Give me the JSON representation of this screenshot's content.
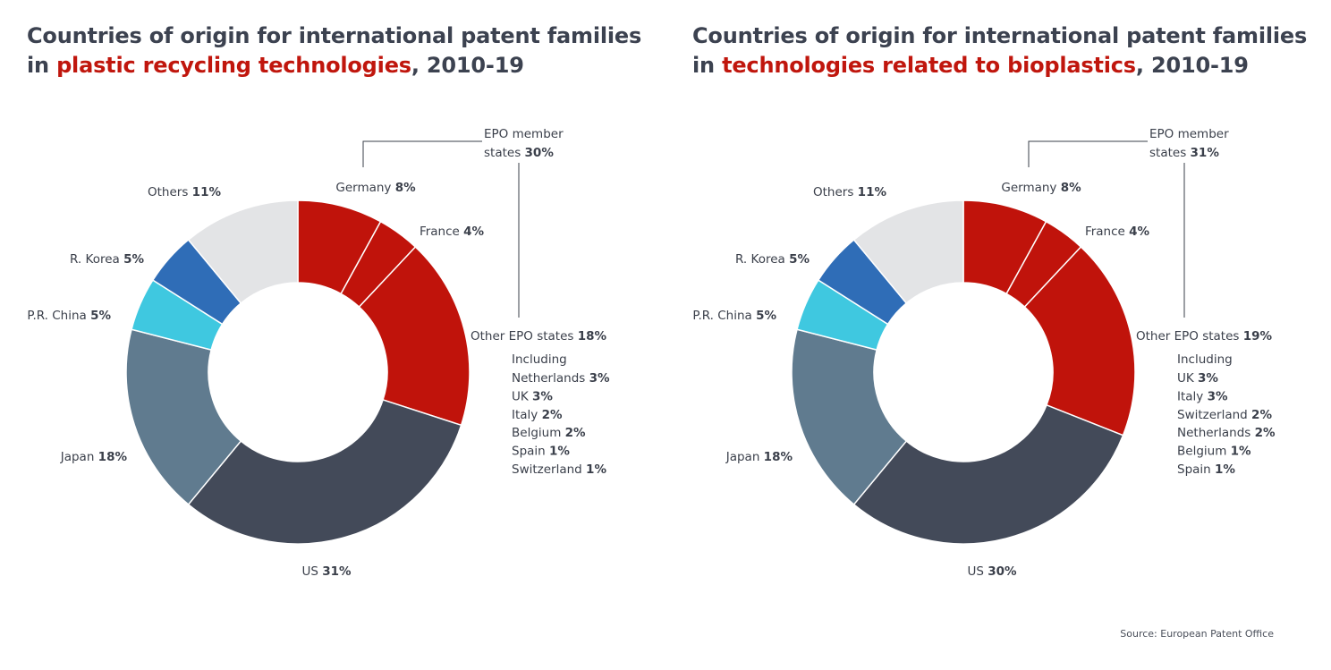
{
  "source": "Source: European Patent Office",
  "colors": {
    "epo_red": "#c0130b",
    "us": "#434a59",
    "japan": "#607b8f",
    "china": "#3fc8e0",
    "korea": "#2f6db7",
    "others": "#e3e4e6"
  },
  "chart_data": [
    {
      "type": "pie",
      "donut": true,
      "title": {
        "line1": "Countries of origin for international patent families",
        "prefix": "in ",
        "highlight": "plastic recycling technologies",
        "suffix": ", 2010-19"
      },
      "group": {
        "label": "EPO member",
        "label2": "states ",
        "value": "30%"
      },
      "slices": [
        {
          "key": "germany",
          "name": "Germany",
          "value": 8,
          "display": "8%",
          "color_key": "epo_red"
        },
        {
          "key": "france",
          "name": "France",
          "value": 4,
          "display": "4%",
          "color_key": "epo_red"
        },
        {
          "key": "other_epo",
          "name": "Other EPO states",
          "value": 18,
          "display": "18%",
          "color_key": "epo_red"
        },
        {
          "key": "us",
          "name": "US",
          "value": 31,
          "display": "31%",
          "color_key": "us"
        },
        {
          "key": "japan",
          "name": "Japan",
          "value": 18,
          "display": "18%",
          "color_key": "japan"
        },
        {
          "key": "china",
          "name": "P.R. China",
          "value": 5,
          "display": "5%",
          "color_key": "china"
        },
        {
          "key": "korea",
          "name": "R. Korea",
          "value": 5,
          "display": "5%",
          "color_key": "korea"
        },
        {
          "key": "others",
          "name": "Others",
          "value": 11,
          "display": "11%",
          "color_key": "others"
        }
      ],
      "including_label": "Including",
      "breakdown": [
        {
          "name": "Netherlands",
          "display": "3%"
        },
        {
          "name": "UK",
          "display": "3%"
        },
        {
          "name": "Italy",
          "display": "2%"
        },
        {
          "name": "Belgium",
          "display": "2%"
        },
        {
          "name": "Spain",
          "display": "1%"
        },
        {
          "name": "Switzerland",
          "display": "1%"
        }
      ]
    },
    {
      "type": "pie",
      "donut": true,
      "title": {
        "line1": "Countries of origin for international patent families",
        "prefix": "in ",
        "highlight": "technologies related to bioplastics",
        "suffix": ", 2010-19"
      },
      "group": {
        "label": "EPO member",
        "label2": "states ",
        "value": "31%"
      },
      "slices": [
        {
          "key": "germany",
          "name": "Germany",
          "value": 8,
          "display": "8%",
          "color_key": "epo_red"
        },
        {
          "key": "france",
          "name": "France",
          "value": 4,
          "display": "4%",
          "color_key": "epo_red"
        },
        {
          "key": "other_epo",
          "name": "Other EPO states",
          "value": 19,
          "display": "19%",
          "color_key": "epo_red"
        },
        {
          "key": "us",
          "name": "US",
          "value": 30,
          "display": "30%",
          "color_key": "us"
        },
        {
          "key": "japan",
          "name": "Japan",
          "value": 18,
          "display": "18%",
          "color_key": "japan"
        },
        {
          "key": "china",
          "name": "P.R. China",
          "value": 5,
          "display": "5%",
          "color_key": "china"
        },
        {
          "key": "korea",
          "name": "R. Korea",
          "value": 5,
          "display": "5%",
          "color_key": "korea"
        },
        {
          "key": "others",
          "name": "Others",
          "value": 11,
          "display": "11%",
          "color_key": "others"
        }
      ],
      "including_label": "Including",
      "breakdown": [
        {
          "name": "UK",
          "display": "3%"
        },
        {
          "name": "Italy",
          "display": "3%"
        },
        {
          "name": "Switzerland",
          "display": "2%"
        },
        {
          "name": "Netherlands",
          "display": "2%"
        },
        {
          "name": "Belgium",
          "display": "1%"
        },
        {
          "name": "Spain",
          "display": "1%"
        }
      ]
    }
  ]
}
